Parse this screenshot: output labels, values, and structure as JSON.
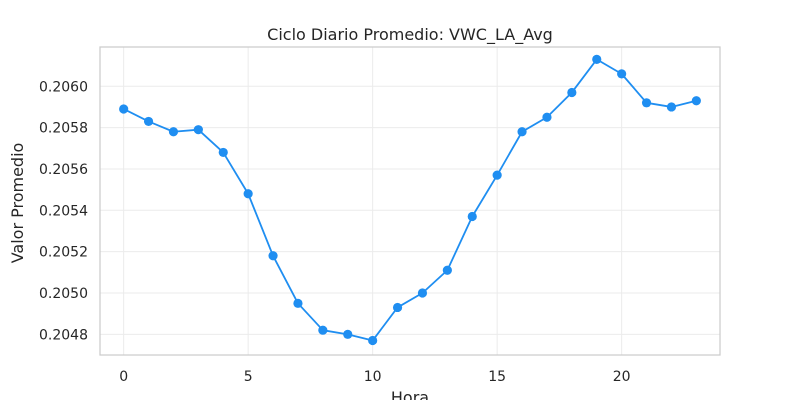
{
  "chart_data": {
    "type": "line",
    "title": "Ciclo Diario Promedio: VWC_LA_Avg",
    "xlabel": "Hora",
    "ylabel": "Valor Promedio",
    "xlim": [
      -0.95,
      23.95
    ],
    "ylim": [
      0.2047,
      0.20619
    ],
    "x_ticks": [
      0,
      5,
      10,
      15,
      20
    ],
    "x_tick_labels": [
      "0",
      "5",
      "10",
      "15",
      "20"
    ],
    "y_ticks": [
      0.2048,
      0.205,
      0.2052,
      0.2054,
      0.2056,
      0.2058,
      0.206
    ],
    "y_tick_labels": [
      "0.2048",
      "0.2050",
      "0.2052",
      "0.2054",
      "0.2056",
      "0.2058",
      "0.2060"
    ],
    "grid": true,
    "legend": "none",
    "x": [
      0,
      1,
      2,
      3,
      4,
      5,
      6,
      7,
      8,
      9,
      10,
      11,
      12,
      13,
      14,
      15,
      16,
      17,
      18,
      19,
      20,
      21,
      22,
      23
    ],
    "series": [
      {
        "color": "#1f8ef1",
        "marker": "circle",
        "values": [
          0.20589,
          0.20583,
          0.20578,
          0.20579,
          0.20568,
          0.20548,
          0.20518,
          0.20495,
          0.20482,
          0.2048,
          0.20477,
          0.20493,
          0.205,
          0.20511,
          0.20537,
          0.20557,
          0.20578,
          0.20585,
          0.20597,
          0.20613,
          0.20606,
          0.20592,
          0.2059,
          0.20593
        ]
      }
    ]
  }
}
